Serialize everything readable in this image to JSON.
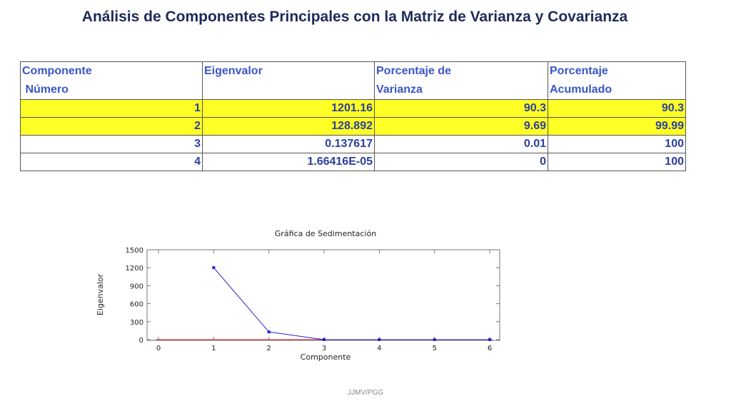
{
  "title": "Análisis  de Componentes Principales con la Matriz de Varianza y Covarianza",
  "table": {
    "headers": [
      "Componente\n Número",
      "Eigenvalor",
      "Porcentaje de\nVarianza",
      "Porcentaje\nAcumulado"
    ],
    "header_lines": [
      [
        "Componente",
        " Número"
      ],
      [
        "Eigenvalor"
      ],
      [
        "Porcentaje de",
        "Varianza"
      ],
      [
        "Porcentaje",
        "Acumulado"
      ]
    ],
    "rows": [
      [
        "1",
        "1201.16",
        "90.3",
        "90.3"
      ],
      [
        "2",
        "128.892",
        "9.69",
        "99.99"
      ],
      [
        "3",
        "0.137617",
        "0.01",
        "100"
      ],
      [
        "4",
        "1.66416E-05",
        "0",
        "100"
      ]
    ],
    "highlight_color": "#ffff26",
    "highlighted_rows": [
      0,
      1
    ]
  },
  "chart_data": {
    "type": "line",
    "title": "Gráfica de Sedimentación",
    "xlabel": "Componente",
    "ylabel": "Eigenvalor",
    "x": [
      1,
      2,
      3,
      4,
      5,
      6
    ],
    "series": [
      {
        "values": [
          1201.16,
          128.892,
          0.137617,
          1.66416e-05,
          0,
          0
        ]
      }
    ],
    "xlim": [
      0,
      6
    ],
    "ylim": [
      0,
      1500
    ],
    "xticks": [
      "0",
      "1",
      "2",
      "3",
      "4",
      "5",
      "6"
    ],
    "yticks": [
      "0",
      "300",
      "600",
      "900",
      "1200",
      "1500"
    ],
    "reference_line": 0,
    "series_color": "#2424c8",
    "reference_color": "#d02020",
    "grid": false
  },
  "footer": "JJMV/PGG"
}
